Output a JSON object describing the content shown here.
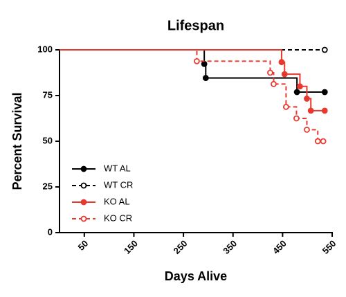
{
  "chart_data": {
    "type": "step",
    "title": "Lifespan",
    "x_label": "Days Alive",
    "y_label": "Percent Survival",
    "xlim": [
      0,
      550
    ],
    "xticks": [
      50,
      150,
      250,
      350,
      450,
      550
    ],
    "ylim": [
      0,
      100
    ],
    "yticks": [
      0,
      25,
      50,
      75,
      100
    ],
    "legend": "left",
    "series": [
      {
        "name": "WT AL",
        "color": "#000000",
        "dashed": false,
        "marker": "filled",
        "x": [
          0,
          292,
          295,
          479,
          535
        ],
        "values": [
          100,
          92.3,
          84.6,
          76.9,
          76.9
        ]
      },
      {
        "name": "WT CR",
        "color": "#000000",
        "dashed": true,
        "marker": "open",
        "x": [
          0,
          535
        ],
        "values": [
          100,
          100
        ]
      },
      {
        "name": "KO AL",
        "color": "#e8392f",
        "dashed": false,
        "marker": "filled",
        "x": [
          0,
          448,
          454,
          485,
          499,
          507,
          535
        ],
        "values": [
          100,
          93.3,
          86.7,
          80,
          73.3,
          66.7,
          66.7
        ]
      },
      {
        "name": "KO CR",
        "color": "#e8392f",
        "dashed": true,
        "marker": "open",
        "x": [
          0,
          277,
          425,
          432,
          457,
          478,
          499,
          521,
          532
        ],
        "values": [
          100,
          93.8,
          87.5,
          81.3,
          68.8,
          62.5,
          56.3,
          50,
          50
        ]
      }
    ]
  }
}
